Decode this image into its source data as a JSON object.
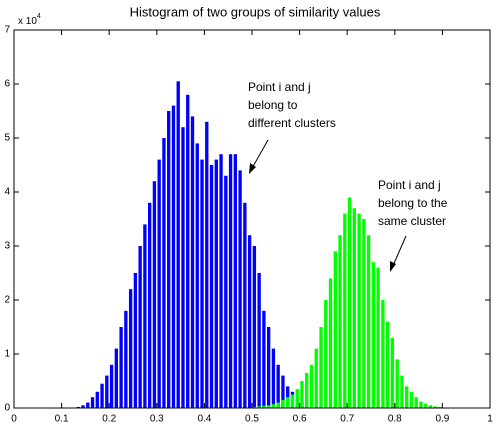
{
  "chart_data": {
    "type": "histogram",
    "title": "Histogram of two groups of similarity values",
    "y_multiplier": {
      "base": "x 10",
      "exponent": "4"
    },
    "bins": [
      0.13,
      0.14,
      0.15,
      0.16,
      0.17,
      0.18,
      0.19,
      0.2,
      0.21,
      0.22,
      0.23,
      0.24,
      0.25,
      0.26,
      0.27,
      0.28,
      0.29,
      0.3,
      0.31,
      0.32,
      0.33,
      0.34,
      0.35,
      0.36,
      0.37,
      0.38,
      0.39,
      0.4,
      0.41,
      0.42,
      0.43,
      0.44,
      0.45,
      0.46,
      0.47,
      0.48,
      0.49,
      0.5,
      0.51,
      0.52,
      0.53,
      0.54,
      0.55,
      0.56,
      0.57,
      0.58,
      0.59,
      0.6,
      0.61,
      0.62,
      0.63,
      0.64,
      0.65,
      0.66,
      0.67,
      0.68,
      0.69,
      0.7,
      0.71,
      0.72,
      0.73,
      0.74,
      0.75,
      0.76,
      0.77,
      0.78,
      0.79,
      0.8,
      0.81,
      0.82,
      0.83,
      0.84,
      0.85,
      0.86,
      0.87,
      0.88,
      0.89,
      0.9
    ],
    "series": [
      {
        "color": "#0000ff",
        "values": [
          0.02,
          0.05,
          0.1,
          0.2,
          0.3,
          0.45,
          0.6,
          0.8,
          1.1,
          1.5,
          1.8,
          2.2,
          2.5,
          3.0,
          3.4,
          3.8,
          4.2,
          4.6,
          5.0,
          5.5,
          5.6,
          6.05,
          5.2,
          5.8,
          5.4,
          4.9,
          4.6,
          5.3,
          4.5,
          4.6,
          4.7,
          4.3,
          4.7,
          4.7,
          4.4,
          3.8,
          3.2,
          3.0,
          2.5,
          1.8,
          1.5,
          1.1,
          0.8,
          0.6,
          0.4,
          0.3,
          0.15,
          0.1,
          0.05,
          0,
          0,
          0,
          0,
          0,
          0,
          0,
          0,
          0,
          0,
          0,
          0,
          0,
          0,
          0,
          0,
          0,
          0,
          0,
          0,
          0,
          0,
          0,
          0,
          0,
          0,
          0,
          0
        ]
      },
      {
        "color": "#00ff00",
        "values": [
          0,
          0,
          0,
          0,
          0,
          0,
          0,
          0,
          0,
          0,
          0,
          0,
          0,
          0,
          0,
          0,
          0,
          0,
          0,
          0,
          0,
          0,
          0,
          0,
          0,
          0,
          0,
          0,
          0,
          0,
          0,
          0,
          0,
          0,
          0,
          0,
          0,
          0.02,
          0.03,
          0.04,
          0.05,
          0.07,
          0.1,
          0.15,
          0.2,
          0.25,
          0.35,
          0.5,
          0.65,
          0.8,
          1.1,
          1.5,
          2.0,
          2.4,
          2.9,
          3.2,
          3.6,
          3.9,
          3.7,
          3.6,
          3.5,
          3.2,
          2.7,
          2.6,
          2.0,
          1.6,
          1.3,
          0.9,
          0.6,
          0.4,
          0.3,
          0.2,
          0.12,
          0.08,
          0.05,
          0.03,
          0.02
        ]
      }
    ],
    "xlim": [
      0,
      1
    ],
    "xticks": [
      0,
      0.1,
      0.2,
      0.3,
      0.4,
      0.5,
      0.6,
      0.7,
      0.8,
      0.9,
      1
    ],
    "ylim": [
      0,
      7
    ],
    "yticks": [
      0,
      1,
      2,
      3,
      4,
      5,
      6,
      7
    ],
    "annotations": [
      {
        "lines": [
          "Point i and j",
          "belong to",
          "different clusters"
        ]
      },
      {
        "lines": [
          "Point i and j",
          "belong to the",
          "same cluster"
        ]
      }
    ]
  }
}
